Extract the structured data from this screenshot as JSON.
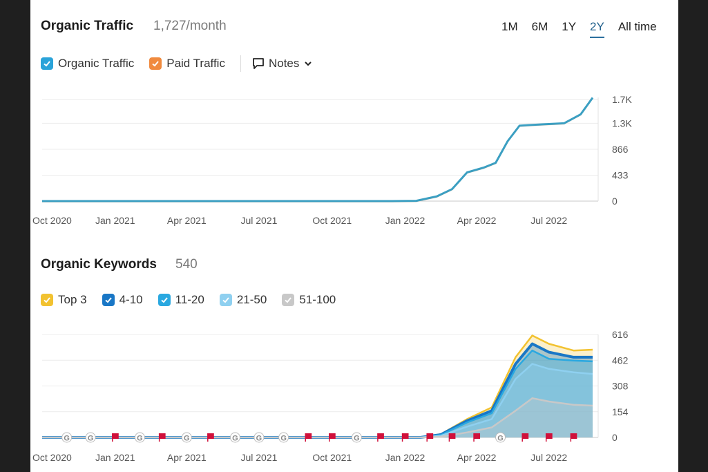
{
  "traffic": {
    "title": "Organic Traffic",
    "metric": "1,727/month",
    "ranges": [
      "1M",
      "6M",
      "1Y",
      "2Y",
      "All time"
    ],
    "active_range": "2Y",
    "legend": {
      "organic": "Organic Traffic",
      "paid": "Paid Traffic",
      "notes": "Notes"
    },
    "colors": {
      "organic": "#2aa3d9",
      "paid": "#f08a3e",
      "line": "#3b9fc2"
    }
  },
  "keywords": {
    "title": "Organic Keywords",
    "metric": "540",
    "legend": [
      "Top 3",
      "4-10",
      "11-20",
      "21-50",
      "51-100"
    ],
    "colors": [
      "#f2c230",
      "#1977c6",
      "#2aa8e0",
      "#8fd0f0",
      "#c8c8c8"
    ]
  },
  "chart_data": [
    {
      "type": "line",
      "title": "Organic Traffic",
      "x_tick_labels": [
        "Oct 2020",
        "Jan 2021",
        "Apr 2021",
        "Jul 2021",
        "Oct 2021",
        "Jan 2022",
        "Apr 2022",
        "Jul 2022"
      ],
      "y_tick_labels": [
        "0",
        "433",
        "866",
        "1.3K",
        "1.7K"
      ],
      "y_ticks": [
        0,
        433,
        866,
        1300,
        1700
      ],
      "ylim": [
        0,
        1732
      ],
      "grid": true,
      "series": [
        {
          "name": "Organic Traffic",
          "x": [
            "2020-10-01",
            "2021-01-01",
            "2021-04-01",
            "2021-07-01",
            "2021-10-01",
            "2021-12-15",
            "2022-01-15",
            "2022-02-10",
            "2022-03-01",
            "2022-03-20",
            "2022-04-10",
            "2022-04-25",
            "2022-05-10",
            "2022-05-25",
            "2022-06-20",
            "2022-07-20",
            "2022-08-10",
            "2022-08-25"
          ],
          "values": [
            0,
            0,
            0,
            0,
            0,
            0,
            5,
            80,
            200,
            480,
            560,
            640,
            1000,
            1260,
            1280,
            1300,
            1450,
            1727
          ]
        }
      ]
    },
    {
      "type": "area",
      "title": "Organic Keywords",
      "x_tick_labels": [
        "Oct 2020",
        "Jan 2021",
        "Apr 2021",
        "Jul 2021",
        "Oct 2021",
        "Jan 2022",
        "Apr 2022",
        "Jul 2022"
      ],
      "y_tick_labels": [
        "0",
        "154",
        "308",
        "462",
        "616"
      ],
      "y_ticks": [
        0,
        154,
        308,
        462,
        616
      ],
      "ylim": [
        0,
        616
      ],
      "grid": true,
      "x": [
        "2020-10-01",
        "2021-10-01",
        "2022-01-20",
        "2022-02-15",
        "2022-03-20",
        "2022-04-20",
        "2022-05-20",
        "2022-06-10",
        "2022-07-01",
        "2022-08-01",
        "2022-08-25"
      ],
      "series": [
        {
          "name": "Top 3",
          "values": [
            0,
            0,
            0,
            20,
            110,
            180,
            480,
            610,
            560,
            520,
            525
          ]
        },
        {
          "name": "4-10",
          "values": [
            0,
            0,
            0,
            17,
            100,
            160,
            440,
            560,
            510,
            480,
            480
          ]
        },
        {
          "name": "11-20",
          "values": [
            0,
            0,
            0,
            15,
            90,
            145,
            410,
            520,
            470,
            460,
            455
          ]
        },
        {
          "name": "21-50",
          "values": [
            0,
            0,
            0,
            10,
            65,
            110,
            350,
            440,
            410,
            390,
            380
          ]
        },
        {
          "name": "51-100",
          "values": [
            0,
            0,
            0,
            4,
            30,
            60,
            160,
            235,
            215,
            195,
            190
          ]
        }
      ],
      "event_markers": [
        {
          "x": "2020-11-01",
          "kind": "google"
        },
        {
          "x": "2020-12-01",
          "kind": "google"
        },
        {
          "x": "2021-01-01",
          "kind": "flag"
        },
        {
          "x": "2021-02-01",
          "kind": "google"
        },
        {
          "x": "2021-03-01",
          "kind": "flag"
        },
        {
          "x": "2021-04-01",
          "kind": "google"
        },
        {
          "x": "2021-05-01",
          "kind": "flag"
        },
        {
          "x": "2021-06-01",
          "kind": "google"
        },
        {
          "x": "2021-07-01",
          "kind": "google"
        },
        {
          "x": "2021-08-01",
          "kind": "google"
        },
        {
          "x": "2021-09-01",
          "kind": "flag"
        },
        {
          "x": "2021-10-01",
          "kind": "flag"
        },
        {
          "x": "2021-11-01",
          "kind": "google"
        },
        {
          "x": "2021-12-01",
          "kind": "flag"
        },
        {
          "x": "2022-01-01",
          "kind": "flag"
        },
        {
          "x": "2022-02-01",
          "kind": "flag"
        },
        {
          "x": "2022-03-01",
          "kind": "flag"
        },
        {
          "x": "2022-04-01",
          "kind": "flag"
        },
        {
          "x": "2022-05-01",
          "kind": "google"
        },
        {
          "x": "2022-06-01",
          "kind": "flag"
        },
        {
          "x": "2022-07-01",
          "kind": "flag"
        },
        {
          "x": "2022-08-01",
          "kind": "flag"
        }
      ]
    }
  ]
}
